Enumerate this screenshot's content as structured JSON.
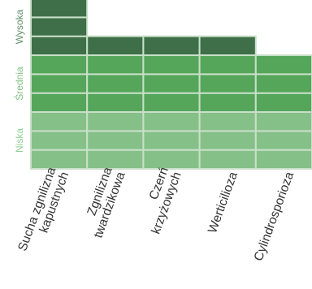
{
  "chart_data": {
    "type": "bar",
    "stacked": true,
    "categories": [
      [
        "Sucha zgnilizna",
        "kapustnych"
      ],
      [
        "Zgnilizna",
        "twardzikowa"
      ],
      [
        "Czerń",
        "krzyżowych"
      ],
      [
        "Werticilioza"
      ],
      [
        "Cylindrosporioza"
      ]
    ],
    "series": [
      {
        "name": "Niska",
        "values": [
          3,
          3,
          3,
          3,
          3
        ]
      },
      {
        "name": "Średnia",
        "values": [
          3,
          3,
          3,
          3,
          3
        ]
      },
      {
        "name": "Wysoka",
        "values": [
          3,
          1,
          1,
          1,
          0
        ]
      }
    ],
    "y_axis_labels": [
      "Niska",
      "Średnia",
      "Wysoka"
    ],
    "colors": {
      "Niska": "#85c088",
      "Średnia": "#55a55a",
      "Wysoka": "#3f6f48",
      "label_niska": "#8fcf92",
      "label_srednia": "#7fbf82",
      "label_wysoka": "#5f8f68",
      "cell_border": "#c8e0c8"
    },
    "grid": false,
    "legend": "none"
  }
}
